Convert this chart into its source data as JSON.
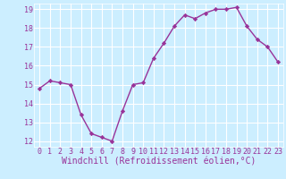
{
  "x": [
    0,
    1,
    2,
    3,
    4,
    5,
    6,
    7,
    8,
    9,
    10,
    11,
    12,
    13,
    14,
    15,
    16,
    17,
    18,
    19,
    20,
    21,
    22,
    23
  ],
  "y": [
    14.8,
    15.2,
    15.1,
    15.0,
    13.4,
    12.4,
    12.2,
    12.0,
    13.6,
    15.0,
    15.1,
    16.4,
    17.2,
    18.1,
    18.7,
    18.5,
    18.8,
    19.0,
    19.0,
    19.1,
    18.1,
    17.4,
    17.0,
    16.2
  ],
  "line_color": "#993399",
  "marker": "D",
  "markersize": 2.2,
  "linewidth": 1.0,
  "bg_color": "#cceeff",
  "grid_color": "#ffffff",
  "xlabel": "Windchill (Refroidissement éolien,°C)",
  "xlabel_color": "#993399",
  "tick_color": "#993399",
  "ylim": [
    11.7,
    19.3
  ],
  "yticks": [
    12,
    13,
    14,
    15,
    16,
    17,
    18,
    19
  ],
  "xticks": [
    0,
    1,
    2,
    3,
    4,
    5,
    6,
    7,
    8,
    9,
    10,
    11,
    12,
    13,
    14,
    15,
    16,
    17,
    18,
    19,
    20,
    21,
    22,
    23
  ],
  "fontsize_ticks": 6.0,
  "fontsize_label": 7.0
}
